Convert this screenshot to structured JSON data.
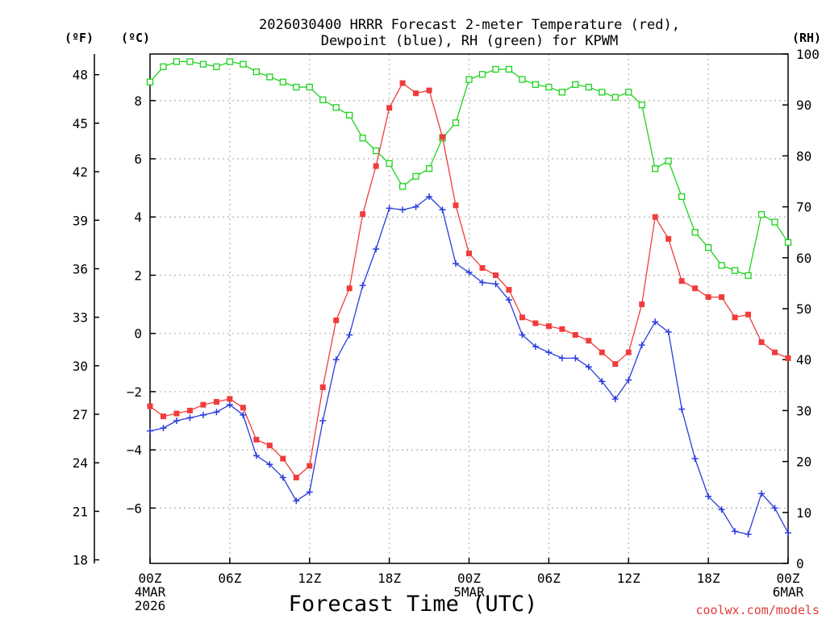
{
  "chart_data": {
    "type": "line",
    "title_line1": "2026030400 HRRR Forecast 2-meter Temperature (red),",
    "title_line2": "Dewpoint (blue), RH (green) for KPWM",
    "xlabel": "Forecast Time (UTC)",
    "credit": "coolwx.com/models",
    "axis_units": {
      "f": "(ºF)",
      "c": "(ºC)",
      "rh": "(RH)"
    },
    "colors": {
      "temperature": "#f03c3c",
      "dewpoint": "#2a3cdc",
      "rh": "#1ed21e",
      "grid": "#b4b4b4",
      "axis": "#000000"
    },
    "xlim": [
      0,
      48
    ],
    "x_ticks": [
      {
        "hour": 0,
        "label": "00Z",
        "sub1": "4MAR",
        "sub2": "2026"
      },
      {
        "hour": 6,
        "label": "06Z"
      },
      {
        "hour": 12,
        "label": "12Z"
      },
      {
        "hour": 18,
        "label": "18Z"
      },
      {
        "hour": 24,
        "label": "00Z",
        "sub1": "5MAR"
      },
      {
        "hour": 30,
        "label": "06Z"
      },
      {
        "hour": 36,
        "label": "12Z"
      },
      {
        "hour": 42,
        "label": "18Z"
      },
      {
        "hour": 48,
        "label": "00Z",
        "sub1": "6MAR"
      }
    ],
    "y_celsius": {
      "lim": [
        -7.9,
        9.6
      ],
      "ticks": [
        -6,
        -4,
        -2,
        0,
        2,
        4,
        6,
        8
      ]
    },
    "y_fahrenheit": {
      "ticks": [
        18,
        21,
        24,
        27,
        30,
        33,
        36,
        39,
        42,
        45,
        48
      ]
    },
    "y_rh": {
      "lim": [
        0,
        100
      ],
      "ticks": [
        0,
        10,
        20,
        30,
        40,
        50,
        60,
        70,
        80,
        90,
        100
      ]
    },
    "series": [
      {
        "name": "Temperature",
        "unit": "C",
        "values": [
          -2.5,
          -2.85,
          -2.75,
          -2.65,
          -2.45,
          -2.35,
          -2.25,
          -2.55,
          -3.65,
          -3.85,
          -4.3,
          -4.95,
          -4.55,
          -1.85,
          0.45,
          1.55,
          4.1,
          5.75,
          7.75,
          8.6,
          8.25,
          8.35,
          6.75,
          4.4,
          2.75,
          2.25,
          2.0,
          1.5,
          0.55,
          0.35,
          0.25,
          0.15,
          -0.05,
          -0.25,
          -0.65,
          -1.05,
          -0.65,
          1.0,
          4.0,
          3.25,
          1.8,
          1.55,
          1.25,
          1.25,
          0.55,
          0.65,
          -0.3,
          -0.65,
          -0.85
        ]
      },
      {
        "name": "Dewpoint",
        "unit": "C",
        "values": [
          -3.35,
          -3.25,
          -3.0,
          -2.9,
          -2.8,
          -2.7,
          -2.45,
          -2.8,
          -4.2,
          -4.5,
          -4.95,
          -5.75,
          -5.45,
          -3.0,
          -0.9,
          -0.05,
          1.65,
          2.9,
          4.3,
          4.25,
          4.35,
          4.7,
          4.25,
          2.4,
          2.1,
          1.75,
          1.7,
          1.15,
          -0.05,
          -0.45,
          -0.65,
          -0.85,
          -0.85,
          -1.15,
          -1.65,
          -2.25,
          -1.6,
          -0.4,
          0.4,
          0.05,
          -2.6,
          -4.3,
          -5.6,
          -6.05,
          -6.8,
          -6.9,
          -5.5,
          -6.0,
          -6.85
        ]
      },
      {
        "name": "RH",
        "unit": "%",
        "values": [
          94.5,
          97.5,
          98.5,
          98.5,
          98.0,
          97.5,
          98.5,
          98.0,
          96.5,
          95.5,
          94.5,
          93.5,
          93.5,
          91.0,
          89.5,
          88.0,
          83.5,
          81.0,
          78.5,
          74.0,
          76.0,
          77.5,
          83.5,
          86.5,
          95.0,
          96.0,
          97.0,
          97.0,
          95.0,
          94.0,
          93.5,
          92.5,
          94.0,
          93.5,
          92.5,
          91.5,
          92.5,
          90.0,
          77.5,
          79.0,
          72.0,
          65.0,
          62.0,
          58.5,
          57.5,
          56.5,
          68.5,
          67.0,
          63.0
        ]
      }
    ]
  }
}
